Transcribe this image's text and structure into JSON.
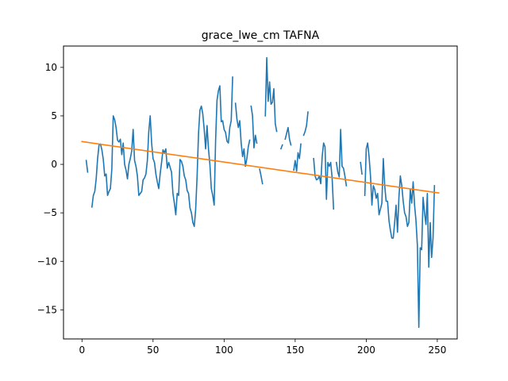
{
  "chart_data": {
    "type": "line",
    "title": "grace_lwe_cm TAFNA",
    "xlabel": "",
    "ylabel": "",
    "xlim": [
      -13,
      264
    ],
    "ylim": [
      -18,
      12.2
    ],
    "xticks": [
      0,
      50,
      100,
      150,
      200,
      250
    ],
    "yticks": [
      -15,
      -10,
      -5,
      0,
      5,
      10
    ],
    "grid": false,
    "series": [
      {
        "color": "#1f77b4",
        "segments": [
          [
            [
              3,
              0.4
            ],
            [
              4,
              -0.8
            ]
          ],
          [
            [
              7,
              -4.4
            ],
            [
              8,
              -3.2
            ],
            [
              9,
              -2.8
            ],
            [
              10,
              -1.5
            ],
            [
              11,
              0.6
            ],
            [
              12,
              2.0
            ],
            [
              13,
              2.1
            ],
            [
              14,
              1.5
            ],
            [
              15,
              0.5
            ],
            [
              16,
              -1.2
            ],
            [
              17,
              -1.0
            ],
            [
              18,
              -3.2
            ],
            [
              19,
              -2.8
            ],
            [
              20,
              -2.5
            ],
            [
              21,
              -0.5
            ],
            [
              22,
              5.0
            ],
            [
              23,
              4.6
            ],
            [
              24,
              3.8
            ],
            [
              25,
              2.5
            ],
            [
              26,
              2.3
            ],
            [
              27,
              2.6
            ],
            [
              28,
              1.0
            ],
            [
              29,
              2.2
            ],
            [
              30,
              0.0
            ],
            [
              31,
              -0.6
            ],
            [
              32,
              -1.5
            ],
            [
              33,
              0.0
            ],
            [
              34,
              0.6
            ],
            [
              35,
              1.4
            ],
            [
              36,
              3.6
            ],
            [
              37,
              0.4
            ],
            [
              38,
              -0.2
            ],
            [
              39,
              -1.2
            ],
            [
              40,
              -3.2
            ],
            [
              41,
              -3.0
            ],
            [
              42,
              -2.8
            ],
            [
              43,
              -1.6
            ],
            [
              44,
              -1.4
            ],
            [
              45,
              -1.0
            ],
            [
              46,
              0.4
            ],
            [
              47,
              3.4
            ],
            [
              48,
              5.0
            ],
            [
              49,
              2.2
            ],
            [
              50,
              0.6
            ],
            [
              51,
              0.2
            ],
            [
              52,
              -1.0
            ],
            [
              53,
              -1.8
            ],
            [
              54,
              -2.5
            ],
            [
              55,
              -1.0
            ],
            [
              56,
              0.2
            ],
            [
              57,
              1.5
            ],
            [
              58,
              1.2
            ],
            [
              59,
              1.6
            ],
            [
              60,
              -0.4
            ],
            [
              61,
              0.2
            ],
            [
              62,
              -0.3
            ],
            [
              63,
              -0.8
            ],
            [
              64,
              -3.0
            ],
            [
              65,
              -4.0
            ],
            [
              66,
              -5.2
            ],
            [
              67,
              -3.0
            ],
            [
              68,
              -3.2
            ],
            [
              69,
              0.5
            ],
            [
              70,
              0.3
            ],
            [
              71,
              -0.2
            ],
            [
              72,
              -1.2
            ],
            [
              73,
              -1.6
            ],
            [
              74,
              -2.7
            ],
            [
              75,
              -3.0
            ],
            [
              76,
              -4.5
            ],
            [
              77,
              -5.0
            ],
            [
              78,
              -6.0
            ],
            [
              79,
              -6.4
            ],
            [
              80,
              -4.6
            ],
            [
              81,
              -1.2
            ],
            [
              82,
              3.2
            ],
            [
              83,
              5.6
            ],
            [
              84,
              6.0
            ],
            [
              85,
              5.2
            ],
            [
              86,
              3.6
            ],
            [
              87,
              1.6
            ],
            [
              88,
              4.0
            ],
            [
              89,
              1.6
            ],
            [
              90,
              0.0
            ],
            [
              91,
              -2.5
            ],
            [
              92,
              -3.2
            ],
            [
              93,
              -4.2
            ],
            [
              94,
              2.4
            ],
            [
              95,
              6.6
            ],
            [
              96,
              7.6
            ],
            [
              97,
              8.1
            ],
            [
              98,
              4.4
            ],
            [
              99,
              4.5
            ],
            [
              100,
              3.6
            ],
            [
              101,
              3.3
            ],
            [
              102,
              2.4
            ],
            [
              103,
              2.2
            ],
            [
              104,
              3.8
            ],
            [
              105,
              4.5
            ],
            [
              106,
              9.0
            ]
          ],
          [
            [
              108,
              6.3
            ],
            [
              109,
              4.7
            ],
            [
              110,
              3.8
            ],
            [
              111,
              4.5
            ],
            [
              112,
              2.2
            ],
            [
              113,
              0.8
            ],
            [
              114,
              1.6
            ],
            [
              115,
              -0.2
            ],
            [
              116,
              0.6
            ],
            [
              117,
              1.8
            ],
            [
              118,
              2.5
            ]
          ],
          [
            [
              119,
              6.0
            ],
            [
              120,
              5.0
            ],
            [
              121,
              1.7
            ],
            [
              122,
              3.0
            ],
            [
              123,
              2.2
            ]
          ],
          [
            [
              125,
              -0.5
            ],
            [
              126,
              -1.2
            ],
            [
              127,
              -2.0
            ]
          ],
          [
            [
              129,
              5.0
            ],
            [
              130,
              11.0
            ],
            [
              131,
              6.5
            ],
            [
              132,
              8.5
            ],
            [
              133,
              6.2
            ],
            [
              134,
              6.4
            ],
            [
              135,
              7.8
            ],
            [
              136,
              4.2
            ],
            [
              137,
              3.4
            ]
          ],
          [
            [
              140,
              1.6
            ],
            [
              141,
              2.0
            ]
          ],
          [
            [
              143,
              2.6
            ],
            [
              144,
              3.2
            ],
            [
              145,
              3.8
            ],
            [
              146,
              2.6
            ],
            [
              147,
              2.0
            ]
          ],
          [
            [
              149,
              -0.6
            ],
            [
              150,
              0.4
            ],
            [
              151,
              -0.7
            ],
            [
              152,
              1.2
            ],
            [
              153,
              0.6
            ],
            [
              154,
              2.1
            ]
          ],
          [
            [
              156,
              3.0
            ],
            [
              157,
              3.4
            ],
            [
              158,
              4.0
            ],
            [
              159,
              5.4
            ]
          ],
          [
            [
              163,
              0.6
            ],
            [
              164,
              -1.2
            ],
            [
              165,
              -1.6
            ],
            [
              166,
              -1.5
            ],
            [
              167,
              -1.2
            ],
            [
              168,
              -2.0
            ],
            [
              169,
              0.8
            ],
            [
              170,
              2.2
            ],
            [
              171,
              1.8
            ],
            [
              172,
              -3.6
            ],
            [
              173,
              0.2
            ],
            [
              174,
              -0.2
            ],
            [
              175,
              0.2
            ],
            [
              176,
              -1.4
            ],
            [
              177,
              -4.6
            ]
          ],
          [
            [
              179,
              0.2
            ],
            [
              180,
              -0.8
            ],
            [
              181,
              -1.3
            ],
            [
              182,
              3.6
            ],
            [
              183,
              -0.2
            ],
            [
              184,
              -0.4
            ],
            [
              185,
              -1.2
            ],
            [
              186,
              -2.2
            ]
          ],
          [
            [
              196,
              0.2
            ],
            [
              197,
              -1.0
            ]
          ],
          [
            [
              199,
              -3.2
            ],
            [
              200,
              1.6
            ],
            [
              201,
              2.2
            ],
            [
              202,
              0.8
            ],
            [
              203,
              -1.2
            ],
            [
              204,
              -4.2
            ],
            [
              205,
              -2.2
            ],
            [
              206,
              -2.6
            ],
            [
              207,
              -3.5
            ],
            [
              208,
              -3.0
            ],
            [
              209,
              -5.2
            ],
            [
              210,
              -4.6
            ],
            [
              211,
              -4.0
            ],
            [
              212,
              0.6
            ],
            [
              213,
              -2.2
            ],
            [
              214,
              -3.8
            ],
            [
              215,
              -3.8
            ],
            [
              216,
              -5.8
            ],
            [
              217,
              -6.8
            ],
            [
              218,
              -7.6
            ],
            [
              219,
              -7.6
            ],
            [
              220,
              -6.0
            ],
            [
              221,
              -4.2
            ],
            [
              222,
              -7.0
            ],
            [
              223,
              -3.4
            ],
            [
              224,
              -1.2
            ],
            [
              225,
              -2.2
            ],
            [
              226,
              -3.8
            ],
            [
              227,
              -5.0
            ],
            [
              228,
              -5.4
            ],
            [
              229,
              -6.4
            ],
            [
              230,
              -6.0
            ],
            [
              231,
              -2.6
            ],
            [
              232,
              -4.0
            ],
            [
              233,
              -1.8
            ],
            [
              234,
              -4.2
            ],
            [
              235,
              -5.8
            ],
            [
              236,
              -8.4
            ],
            [
              237,
              -16.8
            ],
            [
              238,
              -8.6
            ],
            [
              239,
              -8.8
            ],
            [
              240,
              -3.4
            ],
            [
              241,
              -5.0
            ],
            [
              242,
              -6.2
            ],
            [
              243,
              -3.0
            ],
            [
              244,
              -10.6
            ],
            [
              245,
              -6.0
            ],
            [
              246,
              -9.6
            ],
            [
              247,
              -7.6
            ],
            [
              248,
              -2.2
            ]
          ]
        ]
      },
      {
        "color": "#ff7f0e",
        "segments": [
          [
            [
              0,
              2.35
            ],
            [
              251,
              -2.95
            ]
          ]
        ]
      }
    ]
  }
}
